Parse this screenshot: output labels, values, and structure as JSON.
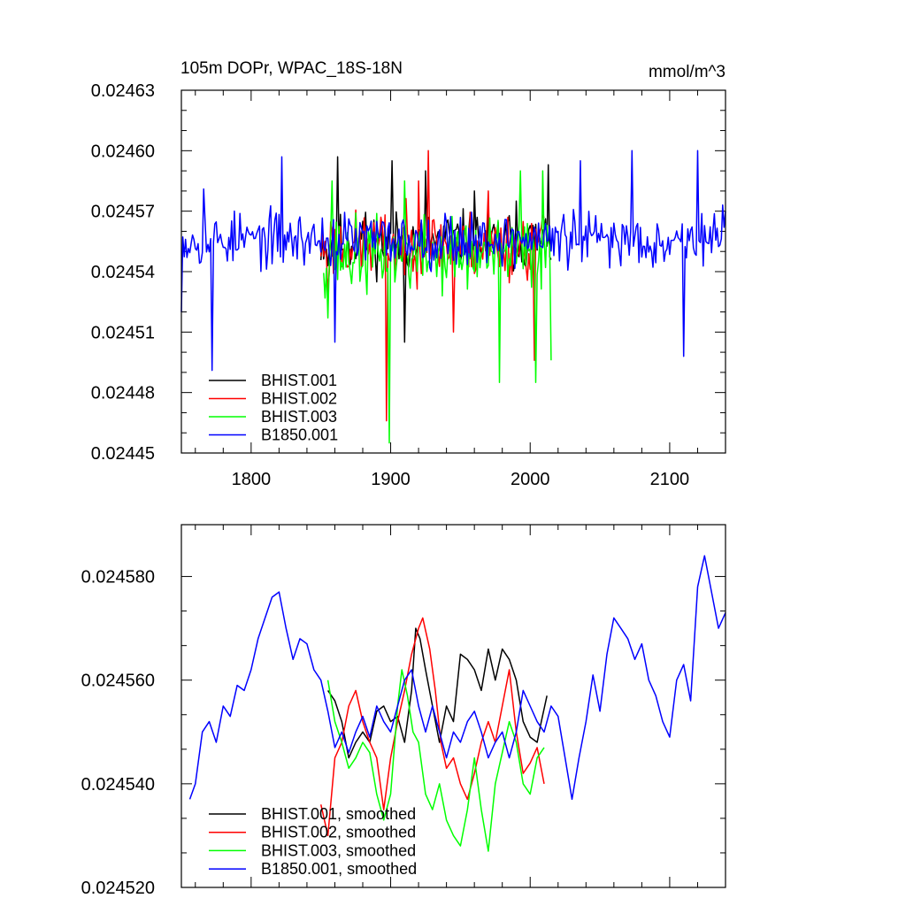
{
  "chart_data": [
    {
      "type": "line",
      "title": "105m DOPr, WPAC_18S-18N",
      "units": "mmol/m^3",
      "xlim": [
        1750,
        2140
      ],
      "ylim": [
        0.02445,
        0.02463
      ],
      "x_ticks": [
        1800,
        1900,
        2000,
        2100
      ],
      "x_tick_labels": [
        "1800",
        "1900",
        "2000",
        "2100"
      ],
      "y_ticks": [
        0.02445,
        0.02448,
        0.02451,
        0.02454,
        0.02457,
        0.0246,
        0.02463
      ],
      "y_tick_labels": [
        "0.02445",
        "0.02448",
        "0.02451",
        "0.02454",
        "0.02457",
        "0.02460",
        "0.02463"
      ],
      "legend_position": "bottom-left",
      "series": [
        {
          "name": "BHIST.001",
          "color": "#000000",
          "x_range": [
            1850,
            2015
          ],
          "mean": 0.024555,
          "spread": 2.2e-05,
          "seed": 11,
          "points": [
            [
              1855,
              0.024543
            ],
            [
              1860,
              0.024558
            ],
            [
              1862,
              0.024597
            ],
            [
              1880,
              0.024565
            ],
            [
              1901,
              0.024595
            ],
            [
              1910,
              0.024505
            ],
            [
              1925,
              0.02459
            ],
            [
              1960,
              0.02458
            ],
            [
              1990,
              0.024575
            ],
            [
              2013,
              0.024593
            ]
          ]
        },
        {
          "name": "BHIST.002",
          "color": "#ff0000",
          "x_range": [
            1850,
            2010
          ],
          "mean": 0.024553,
          "spread": 2.5e-05,
          "seed": 23,
          "points": [
            [
              1855,
              0.02453
            ],
            [
              1897,
              0.024466
            ],
            [
              1920,
              0.024585
            ],
            [
              1927,
              0.0246
            ],
            [
              1945,
              0.02451
            ],
            [
              1970,
              0.02458
            ],
            [
              2003,
              0.024496
            ],
            [
              2007,
              0.02456
            ]
          ]
        },
        {
          "name": "BHIST.003",
          "color": "#00ff00",
          "x_range": [
            1852,
            2015
          ],
          "mean": 0.024548,
          "spread": 2.8e-05,
          "seed": 37,
          "points": [
            [
              1855,
              0.024517
            ],
            [
              1858,
              0.024585
            ],
            [
              1899,
              0.024455
            ],
            [
              1910,
              0.024585
            ],
            [
              1978,
              0.024485
            ],
            [
              1993,
              0.02459
            ],
            [
              2004,
              0.024485
            ],
            [
              2009,
              0.02459
            ],
            [
              2015,
              0.024496
            ]
          ]
        },
        {
          "name": "B1850.001",
          "color": "#0000ff",
          "x_range": [
            1750,
            2140
          ],
          "mean": 0.024556,
          "spread": 2e-05,
          "seed": 53,
          "points": [
            [
              1750,
              0.02452
            ],
            [
              1766,
              0.024581
            ],
            [
              1772,
              0.024491
            ],
            [
              1822,
              0.024597
            ],
            [
              1860,
              0.024505
            ],
            [
              2036,
              0.024595
            ],
            [
              2073,
              0.0246
            ],
            [
              2110,
              0.024498
            ],
            [
              2120,
              0.0246
            ],
            [
              2140,
              0.02457
            ]
          ]
        }
      ]
    },
    {
      "type": "line",
      "xlim": [
        1750,
        2140
      ],
      "ylim": [
        0.02452,
        0.02459
      ],
      "y_ticks": [
        0.02452,
        0.02454,
        0.02456,
        0.02458
      ],
      "y_tick_labels": [
        "0.024520",
        "0.024540",
        "0.024560",
        "0.024580"
      ],
      "x_ticks": [
        1800,
        1900,
        2000,
        2100
      ],
      "legend_position": "bottom-left",
      "series": [
        {
          "name": "BHIST.001, smoothed",
          "color": "#000000",
          "x": [
            1855,
            1860,
            1865,
            1870,
            1875,
            1880,
            1885,
            1890,
            1895,
            1900,
            1905,
            1910,
            1915,
            1918,
            1921,
            1925,
            1930,
            1935,
            1940,
            1945,
            1950,
            1955,
            1960,
            1965,
            1970,
            1975,
            1980,
            1985,
            1990,
            1995,
            2000,
            2005,
            2008,
            2012
          ],
          "y": [
            0.024558,
            0.024556,
            0.024552,
            0.024545,
            0.024548,
            0.02455,
            0.024548,
            0.024554,
            0.024555,
            0.024552,
            0.024553,
            0.024548,
            0.024558,
            0.02457,
            0.024568,
            0.024562,
            0.024555,
            0.024548,
            0.024555,
            0.024552,
            0.024565,
            0.024564,
            0.024562,
            0.024558,
            0.024566,
            0.02456,
            0.024566,
            0.024564,
            0.02456,
            0.024552,
            0.024549,
            0.024548,
            0.024552,
            0.024557
          ]
        },
        {
          "name": "BHIST.002, smoothed",
          "color": "#ff0000",
          "x": [
            1850,
            1855,
            1860,
            1865,
            1870,
            1875,
            1880,
            1885,
            1890,
            1895,
            1900,
            1905,
            1910,
            1915,
            1920,
            1923,
            1928,
            1932,
            1936,
            1940,
            1945,
            1950,
            1955,
            1960,
            1965,
            1970,
            1975,
            1980,
            1985,
            1990,
            1995,
            2000,
            2005,
            2010
          ],
          "y": [
            0.024536,
            0.02453,
            0.024545,
            0.024548,
            0.024555,
            0.024558,
            0.024552,
            0.024548,
            0.024545,
            0.024535,
            0.024545,
            0.024552,
            0.024558,
            0.024565,
            0.02457,
            0.024572,
            0.024566,
            0.024558,
            0.024548,
            0.024543,
            0.024545,
            0.02454,
            0.024537,
            0.024542,
            0.024548,
            0.024552,
            0.024548,
            0.024555,
            0.024562,
            0.02455,
            0.024542,
            0.024544,
            0.024547,
            0.02454
          ]
        },
        {
          "name": "BHIST.003, smoothed",
          "color": "#00ff00",
          "x": [
            1855,
            1860,
            1865,
            1870,
            1875,
            1880,
            1885,
            1890,
            1895,
            1900,
            1905,
            1908,
            1912,
            1916,
            1920,
            1925,
            1930,
            1935,
            1940,
            1945,
            1950,
            1955,
            1960,
            1965,
            1970,
            1975,
            1980,
            1985,
            1990,
            1995,
            2000,
            2005,
            2010
          ],
          "y": [
            0.02456,
            0.024552,
            0.024548,
            0.024543,
            0.024545,
            0.024548,
            0.024546,
            0.024538,
            0.024533,
            0.024538,
            0.024555,
            0.024562,
            0.024557,
            0.02455,
            0.024548,
            0.024538,
            0.024535,
            0.02454,
            0.024533,
            0.02453,
            0.024528,
            0.024535,
            0.024545,
            0.024535,
            0.024527,
            0.02454,
            0.024546,
            0.024552,
            0.024548,
            0.02454,
            0.024538,
            0.024545,
            0.024547
          ]
        },
        {
          "name": "B1850.001, smoothed",
          "color": "#0000ff",
          "x": [
            1756,
            1760,
            1765,
            1770,
            1775,
            1780,
            1785,
            1790,
            1795,
            1800,
            1805,
            1810,
            1815,
            1820,
            1825,
            1830,
            1835,
            1840,
            1845,
            1850,
            1855,
            1860,
            1865,
            1870,
            1875,
            1880,
            1885,
            1890,
            1895,
            1900,
            1905,
            1910,
            1915,
            1920,
            1925,
            1930,
            1935,
            1940,
            1945,
            1950,
            1955,
            1960,
            1965,
            1970,
            1975,
            1980,
            1985,
            1990,
            1995,
            2000,
            2005,
            2010,
            2015,
            2020,
            2025,
            2030,
            2035,
            2040,
            2045,
            2050,
            2055,
            2060,
            2065,
            2070,
            2075,
            2080,
            2085,
            2090,
            2095,
            2100,
            2105,
            2110,
            2115,
            2120,
            2125,
            2130,
            2135,
            2140
          ],
          "y": [
            0.024537,
            0.02454,
            0.02455,
            0.024552,
            0.024548,
            0.024555,
            0.024553,
            0.024559,
            0.024558,
            0.024562,
            0.024568,
            0.024572,
            0.024576,
            0.024577,
            0.02457,
            0.024564,
            0.024568,
            0.024567,
            0.024562,
            0.02456,
            0.024554,
            0.024547,
            0.02455,
            0.024546,
            0.02455,
            0.024553,
            0.024549,
            0.024555,
            0.024552,
            0.02455,
            0.024555,
            0.02456,
            0.024562,
            0.024555,
            0.02455,
            0.024555,
            0.02455,
            0.024545,
            0.02455,
            0.024548,
            0.024552,
            0.024554,
            0.02455,
            0.024545,
            0.024548,
            0.02455,
            0.024545,
            0.02455,
            0.024558,
            0.024555,
            0.024552,
            0.02455,
            0.024555,
            0.024553,
            0.024545,
            0.024537,
            0.024545,
            0.024552,
            0.024561,
            0.024554,
            0.024565,
            0.024572,
            0.02457,
            0.024568,
            0.024564,
            0.024567,
            0.02456,
            0.024557,
            0.024552,
            0.024549,
            0.02456,
            0.024563,
            0.024556,
            0.024578,
            0.024584,
            0.024577,
            0.02457,
            0.024573
          ]
        }
      ]
    }
  ]
}
